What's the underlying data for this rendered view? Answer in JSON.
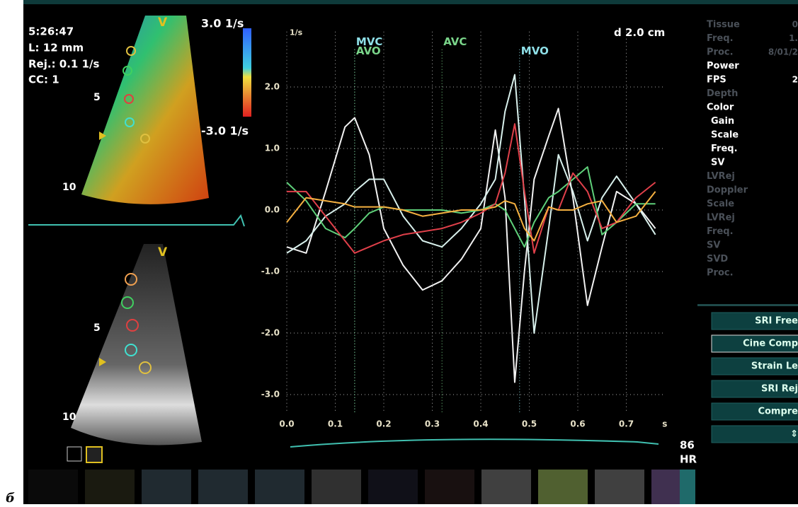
{
  "chart_data": {
    "type": "line",
    "y_unit": "1/s",
    "x_unit": "s",
    "distance": "d 2.0 cm",
    "x": [
      0,
      0.04,
      0.08,
      0.12,
      0.14,
      0.17,
      0.2,
      0.24,
      0.28,
      0.32,
      0.36,
      0.4,
      0.43,
      0.45,
      0.47,
      0.49,
      0.51,
      0.54,
      0.56,
      0.59,
      0.62,
      0.65,
      0.68,
      0.72,
      0.76
    ],
    "series": [
      {
        "color": "#f2f2f2",
        "values": [
          -0.6,
          -0.7,
          0.3,
          1.35,
          1.5,
          0.9,
          -0.3,
          -0.9,
          -1.3,
          -1.15,
          -0.8,
          -0.3,
          1.3,
          0.2,
          -2.8,
          -1.0,
          0.5,
          1.2,
          1.65,
          0.2,
          -1.55,
          -0.6,
          0.3,
          0.1,
          -0.3
        ]
      },
      {
        "color": "#d8f0ec",
        "values": [
          -0.7,
          -0.5,
          -0.1,
          0.1,
          0.3,
          0.5,
          0.5,
          -0.1,
          -0.5,
          -0.6,
          -0.3,
          0.1,
          0.5,
          1.6,
          2.2,
          0.2,
          -2.0,
          -0.3,
          0.9,
          0.3,
          -0.5,
          0.2,
          0.55,
          0.1,
          -0.4
        ]
      },
      {
        "color": "#5fd07a",
        "values": [
          0.45,
          0.15,
          -0.3,
          -0.45,
          -0.3,
          -0.05,
          0.05,
          0,
          0,
          0,
          -0.05,
          0,
          0.1,
          0,
          -0.3,
          -0.6,
          -0.2,
          0.2,
          0.3,
          0.5,
          0.7,
          -0.4,
          -0.2,
          0.1,
          0.1
        ]
      },
      {
        "color": "#e0404a",
        "values": [
          0.3,
          0.3,
          -0.1,
          -0.5,
          -0.7,
          -0.6,
          -0.5,
          -0.4,
          -0.35,
          -0.3,
          -0.2,
          -0.05,
          0.1,
          0.6,
          1.4,
          0.3,
          -0.7,
          0.05,
          0,
          0.6,
          0.3,
          -0.3,
          -0.2,
          0.2,
          0.45
        ]
      },
      {
        "color": "#f5b040",
        "values": [
          -0.2,
          0.2,
          0.15,
          0.1,
          0.05,
          0.05,
          0.05,
          0,
          -0.1,
          -0.05,
          0,
          0,
          0.05,
          0.15,
          0.1,
          -0.3,
          -0.5,
          0.05,
          0,
          0,
          0.1,
          0.15,
          -0.2,
          -0.1,
          0.3
        ]
      }
    ],
    "xlim": [
      0,
      0.78
    ],
    "ylim": [
      -3.3,
      2.9
    ],
    "xticks": [
      {
        "value": 0,
        "label": "0.0"
      },
      0.1,
      0.2,
      0.3,
      0.4,
      0.5,
      0.6,
      0.7
    ],
    "yticks": [
      {
        "value": 2,
        "label": "2.0"
      },
      {
        "value": 1,
        "label": "1.0"
      },
      {
        "value": 0,
        "label": "0.0"
      },
      {
        "value": -1,
        "label": "-1.0"
      },
      {
        "value": -2,
        "label": "-2.0"
      },
      {
        "value": -3,
        "label": "-3.0"
      }
    ],
    "grid": true,
    "events": [
      {
        "label": "MVC",
        "x": 0.14,
        "color": "#8fe0e8"
      },
      {
        "label": "AVO",
        "x": 0.14,
        "color": "#7ad58a"
      },
      {
        "label": "AVC",
        "x": 0.32,
        "color": "#7ad58a"
      },
      {
        "label": "MVO",
        "x": 0.48,
        "color": "#8fe0e8"
      }
    ]
  },
  "screen": {
    "time": "5:26:47",
    "length": "L: 12 mm",
    "rejection": "Rej.: 0.1 1/s",
    "cc": "CC: 1",
    "view_label": "V",
    "scale_top": "3.0 1/s",
    "scale_bottom": "-3.0 1/s",
    "depth_5": "5",
    "depth_10": "10",
    "heart_rate": "86",
    "hr_label": "HR",
    "caption": "б",
    "settings": [
      {
        "name": "Tissue",
        "value": "0",
        "bright": false
      },
      {
        "name": "Freq.",
        "value": "1.",
        "bright": false
      },
      {
        "name": "Proc.",
        "value": "8/01/2",
        "bright": false
      },
      {
        "name": "Power",
        "bright": true
      },
      {
        "name": "FPS",
        "value": "2",
        "bright": true
      },
      {
        "name": "Depth",
        "bright": false
      },
      {
        "name": "Color",
        "bright": true
      },
      {
        "name": "Gain",
        "bright": true
      },
      {
        "name": "Scale",
        "bright": true
      },
      {
        "name": "Freq.",
        "bright": true
      },
      {
        "name": "SV",
        "bright": true
      },
      {
        "name": "LVRej",
        "bright": false
      },
      {
        "name": "Doppler",
        "bright": false
      },
      {
        "name": "Scale",
        "bright": false
      },
      {
        "name": "LVRej",
        "bright": false
      },
      {
        "name": "Freq.",
        "bright": false
      },
      {
        "name": "SV",
        "bright": false
      },
      {
        "name": "SVD",
        "bright": false
      },
      {
        "name": "Proc.",
        "bright": false
      }
    ],
    "buttons": [
      "SRI Free",
      "Cine Comp",
      "Strain Le",
      "SRI Rej",
      "Compre",
      "⇕"
    ]
  }
}
